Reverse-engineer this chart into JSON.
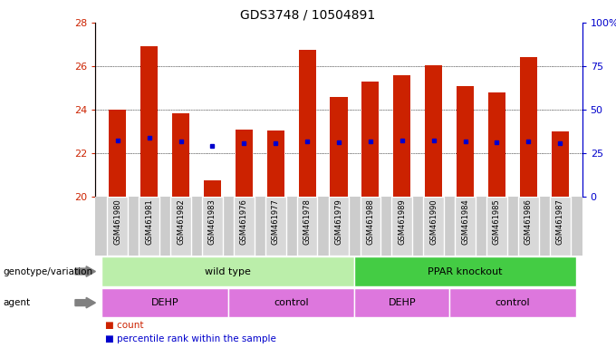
{
  "title": "GDS3748 / 10504891",
  "samples": [
    "GSM461980",
    "GSM461981",
    "GSM461982",
    "GSM461983",
    "GSM461976",
    "GSM461977",
    "GSM461978",
    "GSM461979",
    "GSM461988",
    "GSM461989",
    "GSM461990",
    "GSM461984",
    "GSM461985",
    "GSM461986",
    "GSM461987"
  ],
  "bar_base": 20,
  "bar_tops": [
    24.0,
    26.9,
    23.85,
    20.75,
    23.1,
    23.05,
    26.75,
    24.6,
    25.3,
    25.6,
    26.05,
    25.1,
    24.8,
    26.4,
    23.0
  ],
  "blue_values": [
    22.6,
    22.7,
    22.55,
    22.35,
    22.45,
    22.45,
    22.55,
    22.5,
    22.55,
    22.6,
    22.6,
    22.55,
    22.5,
    22.55,
    22.45
  ],
  "ylim": [
    20,
    28
  ],
  "y_ticks_left": [
    20,
    22,
    24,
    26,
    28
  ],
  "y_ticks_right": [
    0,
    25,
    50,
    75,
    100
  ],
  "bar_color": "#cc2200",
  "blue_color": "#0000cc",
  "genotype_groups": [
    {
      "label": "wild type",
      "start": 0,
      "end": 8,
      "color": "#bbeeaa"
    },
    {
      "label": "PPAR knockout",
      "start": 8,
      "end": 15,
      "color": "#44cc44"
    }
  ],
  "agent_groups": [
    {
      "label": "DEHP",
      "start": 0,
      "end": 4
    },
    {
      "label": "control",
      "start": 4,
      "end": 8
    },
    {
      "label": "DEHP",
      "start": 8,
      "end": 11
    },
    {
      "label": "control",
      "start": 11,
      "end": 15
    }
  ],
  "agent_color": "#dd77dd",
  "legend_count_color": "#cc2200",
  "legend_pct_color": "#0000cc",
  "bar_width": 0.55,
  "sample_bg": "#cccccc",
  "sample_sep_color": "#ffffff"
}
